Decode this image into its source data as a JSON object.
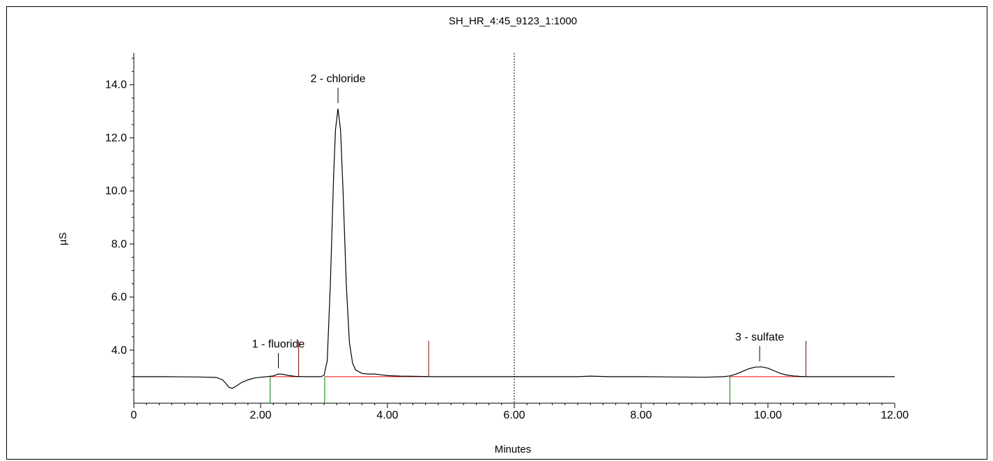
{
  "chart_data": {
    "type": "line",
    "title": "SH_HR_4:45_9123_1:1000",
    "xlabel": "Minutes",
    "ylabel": "µS",
    "xlim": [
      0,
      12
    ],
    "ylim": [
      2.0,
      15.2
    ],
    "x_ticks": [
      {
        "value": 0,
        "label": "0"
      },
      {
        "value": 2,
        "label": "2.00"
      },
      {
        "value": 4,
        "label": "4.00"
      },
      {
        "value": 6,
        "label": "6.00"
      },
      {
        "value": 8,
        "label": "8.00"
      },
      {
        "value": 10,
        "label": "10.00"
      },
      {
        "value": 12,
        "label": "12.00"
      }
    ],
    "y_ticks": [
      {
        "value": 4,
        "label": "4.0"
      },
      {
        "value": 6,
        "label": "6.0"
      },
      {
        "value": 8,
        "label": "8.0"
      },
      {
        "value": 10,
        "label": "10.0"
      },
      {
        "value": 12,
        "label": "12.0"
      },
      {
        "value": 14,
        "label": "14.0"
      }
    ],
    "baseline": 3.0,
    "series": [
      {
        "color": "#000000",
        "x": [
          0,
          0.5,
          1.0,
          1.3,
          1.4,
          1.45,
          1.5,
          1.55,
          1.6,
          1.7,
          1.8,
          1.9,
          2.0,
          2.1,
          2.2,
          2.28,
          2.35,
          2.45,
          2.55,
          2.7,
          2.85,
          2.95,
          3.0,
          3.05,
          3.1,
          3.15,
          3.18,
          3.22,
          3.26,
          3.3,
          3.35,
          3.4,
          3.45,
          3.5,
          3.6,
          3.7,
          3.8,
          3.9,
          4.0,
          4.2,
          4.5,
          4.7,
          5.0,
          5.5,
          6.0,
          6.5,
          7.0,
          7.2,
          7.5,
          8.0,
          8.5,
          9.0,
          9.3,
          9.4,
          9.5,
          9.6,
          9.7,
          9.8,
          9.9,
          10.0,
          10.1,
          10.2,
          10.3,
          10.4,
          10.5,
          10.6,
          11.0,
          11.5,
          12.0
        ],
        "y": [
          3.0,
          3.0,
          2.99,
          2.97,
          2.88,
          2.75,
          2.6,
          2.56,
          2.62,
          2.78,
          2.88,
          2.95,
          2.98,
          3.0,
          3.03,
          3.1,
          3.09,
          3.04,
          3.01,
          3.0,
          3.0,
          3.0,
          3.05,
          3.6,
          6.5,
          10.5,
          12.3,
          13.1,
          12.3,
          10.0,
          6.5,
          4.3,
          3.5,
          3.25,
          3.12,
          3.1,
          3.1,
          3.07,
          3.04,
          3.02,
          3.01,
          3.0,
          3.0,
          3.0,
          3.0,
          3.0,
          3.0,
          3.02,
          3.0,
          3.0,
          2.99,
          2.98,
          3.0,
          3.03,
          3.1,
          3.2,
          3.3,
          3.36,
          3.37,
          3.32,
          3.22,
          3.12,
          3.06,
          3.03,
          3.01,
          3.0,
          3.0,
          3.0,
          3.0
        ]
      }
    ],
    "peaks": [
      {
        "label": "1 - fluoride",
        "rt": 2.28,
        "start": 2.15,
        "end": 2.6
      },
      {
        "label": "2 - chloride",
        "rt": 3.22,
        "start": 3.01,
        "end": 4.65
      },
      {
        "label": "3 - sulfate",
        "rt": 9.87,
        "start": 9.4,
        "end": 10.6
      }
    ],
    "marker_line_x": 6.0,
    "colors": {
      "trace": "#000000",
      "baseline": "#ff0000",
      "peak_start": "#008000",
      "peak_end": "#800000",
      "axes": "#000000"
    }
  }
}
